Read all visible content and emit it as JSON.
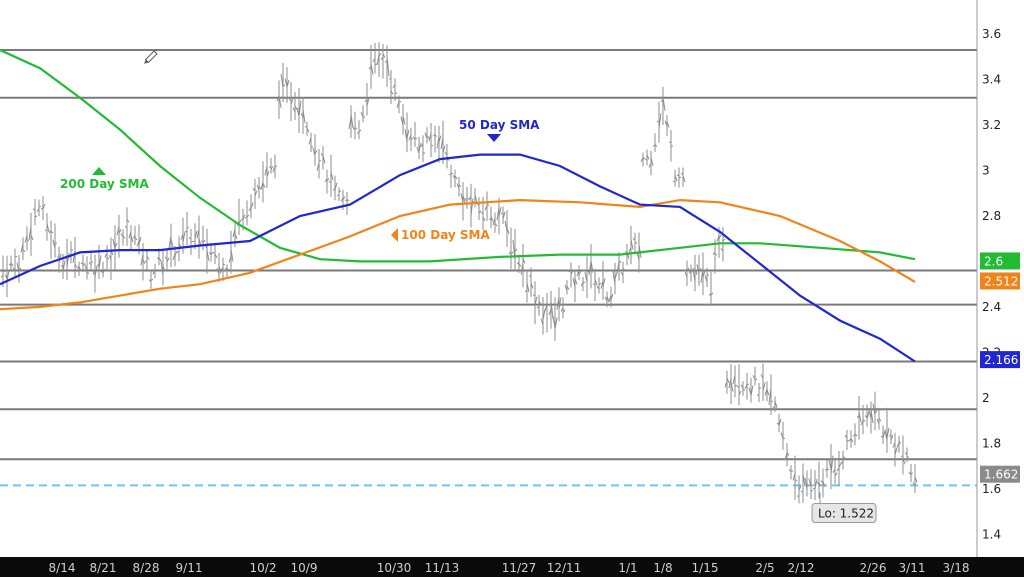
{
  "chart_data": {
    "type": "line",
    "y_axis": {
      "range": [
        1.3,
        3.75
      ],
      "ticks": [
        1.4,
        1.6,
        1.8,
        2,
        2.2,
        2.4,
        2.6,
        2.8,
        3,
        3.2,
        3.4,
        3.6
      ]
    },
    "x_axis": {
      "ticks": [
        "8/14",
        "8/21",
        "8/28",
        "9/11",
        "10/2",
        "10/9",
        "10/30",
        "11/13",
        "11/27",
        "12/11",
        "1/1",
        "1/8",
        "1/15",
        "2/5",
        "2/12",
        "2/26",
        "3/11",
        "3/18"
      ]
    },
    "grid": false,
    "horizontal_lines": [
      3.53,
      3.32,
      2.56,
      2.41,
      2.16,
      1.95,
      1.73
    ],
    "dashed_line": 1.615,
    "series": [
      {
        "name": "200 Day SMA",
        "color": "#22bb33",
        "points": [
          [
            0,
            3.53
          ],
          [
            40,
            3.45
          ],
          [
            80,
            3.32
          ],
          [
            120,
            3.18
          ],
          [
            160,
            3.02
          ],
          [
            200,
            2.88
          ],
          [
            240,
            2.76
          ],
          [
            280,
            2.66
          ],
          [
            320,
            2.61
          ],
          [
            360,
            2.6
          ],
          [
            430,
            2.6
          ],
          [
            500,
            2.62
          ],
          [
            560,
            2.63
          ],
          [
            620,
            2.63
          ],
          [
            680,
            2.66
          ],
          [
            720,
            2.68
          ],
          [
            760,
            2.68
          ],
          [
            820,
            2.66
          ],
          [
            880,
            2.64
          ],
          [
            915,
            2.61
          ]
        ]
      },
      {
        "name": "100 Day SMA",
        "color": "#f08419",
        "points": [
          [
            0,
            2.39
          ],
          [
            40,
            2.4
          ],
          [
            80,
            2.42
          ],
          [
            120,
            2.45
          ],
          [
            160,
            2.48
          ],
          [
            200,
            2.5
          ],
          [
            250,
            2.55
          ],
          [
            300,
            2.63
          ],
          [
            350,
            2.71
          ],
          [
            400,
            2.8
          ],
          [
            450,
            2.85
          ],
          [
            520,
            2.87
          ],
          [
            580,
            2.86
          ],
          [
            640,
            2.84
          ],
          [
            680,
            2.87
          ],
          [
            720,
            2.86
          ],
          [
            780,
            2.8
          ],
          [
            840,
            2.69
          ],
          [
            880,
            2.6
          ],
          [
            915,
            2.51
          ]
        ]
      },
      {
        "name": "50 Day SMA",
        "color": "#1f27d1",
        "points": [
          [
            0,
            2.5
          ],
          [
            40,
            2.58
          ],
          [
            80,
            2.64
          ],
          [
            120,
            2.65
          ],
          [
            160,
            2.65
          ],
          [
            200,
            2.67
          ],
          [
            250,
            2.69
          ],
          [
            300,
            2.8
          ],
          [
            350,
            2.85
          ],
          [
            400,
            2.98
          ],
          [
            440,
            3.05
          ],
          [
            480,
            3.07
          ],
          [
            520,
            3.07
          ],
          [
            560,
            3.02
          ],
          [
            600,
            2.93
          ],
          [
            640,
            2.85
          ],
          [
            680,
            2.84
          ],
          [
            720,
            2.73
          ],
          [
            760,
            2.59
          ],
          [
            800,
            2.45
          ],
          [
            840,
            2.34
          ],
          [
            880,
            2.26
          ],
          [
            915,
            2.16
          ]
        ]
      }
    ],
    "annotations": [
      "200 Day SMA",
      "100  Day SMA",
      "50 Day SMA"
    ],
    "price_badges": [
      {
        "text": "2.6",
        "value": 2.6,
        "color": "#22bb33"
      },
      {
        "text": "2.512",
        "value": 2.512,
        "color": "#f08419"
      },
      {
        "text": "2.166",
        "value": 2.166,
        "color": "#1f27d1"
      },
      {
        "text": "1.662",
        "value": 1.662,
        "color": "#8a8a8a"
      }
    ],
    "low_label": "Lo: 1.522"
  }
}
